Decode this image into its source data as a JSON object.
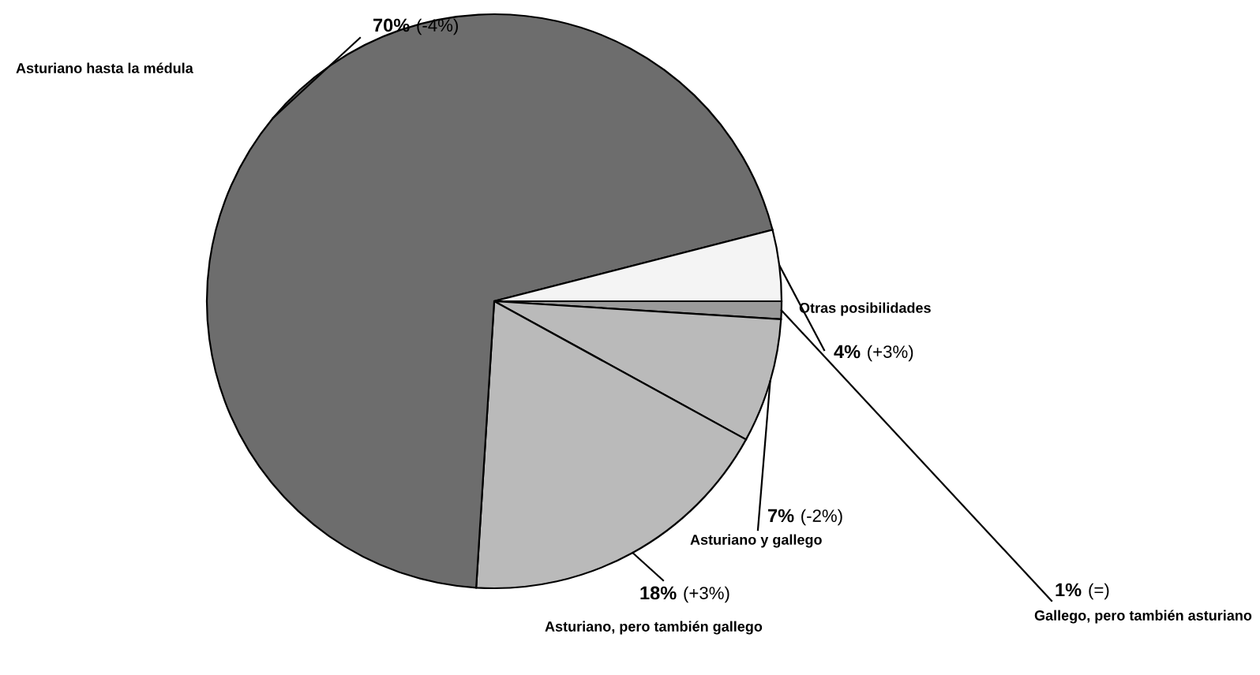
{
  "chart_data": {
    "type": "pie",
    "categories": [
      "Gallego, pero también asturiano",
      "Asturiano y gallego",
      "Asturiano, pero también gallego",
      "Asturiano hasta la médula",
      "Otras posibilidades"
    ],
    "values": [
      1,
      7,
      18,
      70,
      4
    ],
    "colors": [
      "#9a9a9a",
      "#bababa",
      "#bababa",
      "#6d6d6d",
      "#f4f4f4"
    ],
    "value_labels": [
      "1%",
      "7%",
      "18%",
      "70%",
      "4%"
    ],
    "annotations": [
      "(=)",
      "(-2%)",
      "(+3%)",
      "(-4%)",
      "(+3%)"
    ]
  }
}
